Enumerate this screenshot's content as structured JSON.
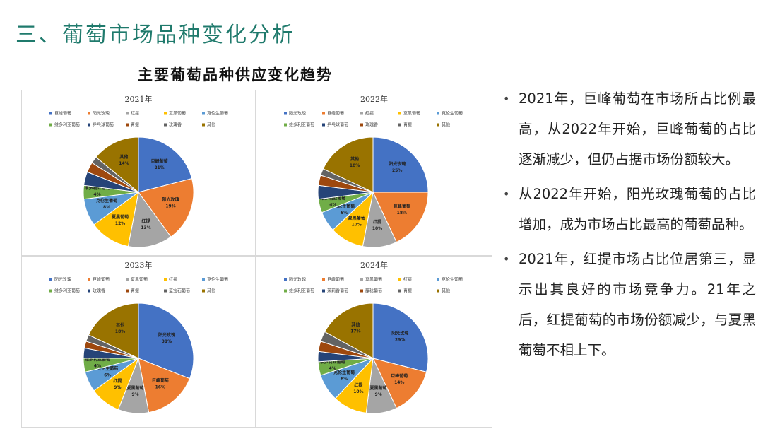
{
  "slide": {
    "title": "三、葡萄市场品种变化分析",
    "subtitle": "主要葡萄品种供应变化趋势",
    "bullets": [
      "2021年，巨峰葡萄在市场所占比例最高，从2022年开始，巨峰葡萄的占比逐渐减少，但仍占据市场份额较大。",
      "从2022年开始，阳光玫瑰葡萄的占比增加，成为市场占比最高的葡萄品种。",
      "2021年，红提市场占比位居第三，显示出其良好的市场竞争力。21年之后，红提葡萄的市场份额减少，与夏黑葡萄不相上下。"
    ]
  },
  "chart_data": [
    {
      "type": "pie",
      "title": "2021年",
      "categories": [
        "巨峰葡萄",
        "阳光玫瑰",
        "红提",
        "夏黑葡萄",
        "克伦生葡萄",
        "维多利亚葡萄",
        "乒乓球葡萄",
        "青提",
        "玫瑰香",
        "其他"
      ],
      "values": [
        21,
        19,
        13,
        12,
        8,
        4,
        4,
        3,
        2,
        14
      ],
      "value_labels": [
        "21%",
        "19%",
        "13%",
        "12%",
        "8%",
        "4%",
        null,
        null,
        null,
        "14%"
      ],
      "colors": [
        "#4472c4",
        "#ed7d31",
        "#a5a5a5",
        "#ffc000",
        "#5b9bd5",
        "#70ad47",
        "#264478",
        "#9e480e",
        "#636363",
        "#997300"
      ]
    },
    {
      "type": "pie",
      "title": "2022年",
      "categories": [
        "阳光玫瑰",
        "巨峰葡萄",
        "红提",
        "夏黑葡萄",
        "克伦生葡萄",
        "维多利亚葡萄",
        "乒乓球葡萄",
        "玫瑰香",
        "青提",
        "其他"
      ],
      "values": [
        25,
        18,
        10,
        10,
        6,
        4,
        4,
        3,
        2,
        18
      ],
      "value_labels": [
        "25%",
        "18%",
        "10%",
        "10%",
        "6%",
        "4%",
        null,
        null,
        null,
        "18%"
      ],
      "colors": [
        "#4472c4",
        "#ed7d31",
        "#a5a5a5",
        "#ffc000",
        "#5b9bd5",
        "#70ad47",
        "#264478",
        "#9e480e",
        "#636363",
        "#997300"
      ]
    },
    {
      "type": "pie",
      "title": "2023年",
      "categories": [
        "阳光玫瑰",
        "巨峰葡萄",
        "夏黑葡萄",
        "红提",
        "克伦生葡萄",
        "维多利亚葡萄",
        "玫瑰香",
        "青提",
        "蓝宝石葡萄",
        "其他"
      ],
      "values": [
        31,
        16,
        9,
        9,
        6,
        4,
        3,
        2,
        2,
        18
      ],
      "value_labels": [
        "31%",
        "16%",
        "9%",
        "9%",
        "6%",
        "4%",
        null,
        null,
        null,
        "18%"
      ],
      "colors": [
        "#4472c4",
        "#ed7d31",
        "#a5a5a5",
        "#ffc000",
        "#5b9bd5",
        "#70ad47",
        "#264478",
        "#9e480e",
        "#636363",
        "#997300"
      ]
    },
    {
      "type": "pie",
      "title": "2024年",
      "categories": [
        "阳光玫瑰",
        "巨峰葡萄",
        "夏黑葡萄",
        "红提",
        "克伦生葡萄",
        "维多利亚葡萄",
        "茉莉香葡萄",
        "藤稔葡萄",
        "青提",
        "其他"
      ],
      "values": [
        29,
        14,
        9,
        10,
        8,
        4,
        3,
        3,
        3,
        17
      ],
      "value_labels": [
        "29%",
        "14%",
        "9%",
        "10%",
        "8%",
        "4%",
        null,
        null,
        null,
        "17%"
      ],
      "colors": [
        "#4472c4",
        "#ed7d31",
        "#a5a5a5",
        "#ffc000",
        "#5b9bd5",
        "#70ad47",
        "#264478",
        "#9e480e",
        "#636363",
        "#997300"
      ]
    }
  ]
}
